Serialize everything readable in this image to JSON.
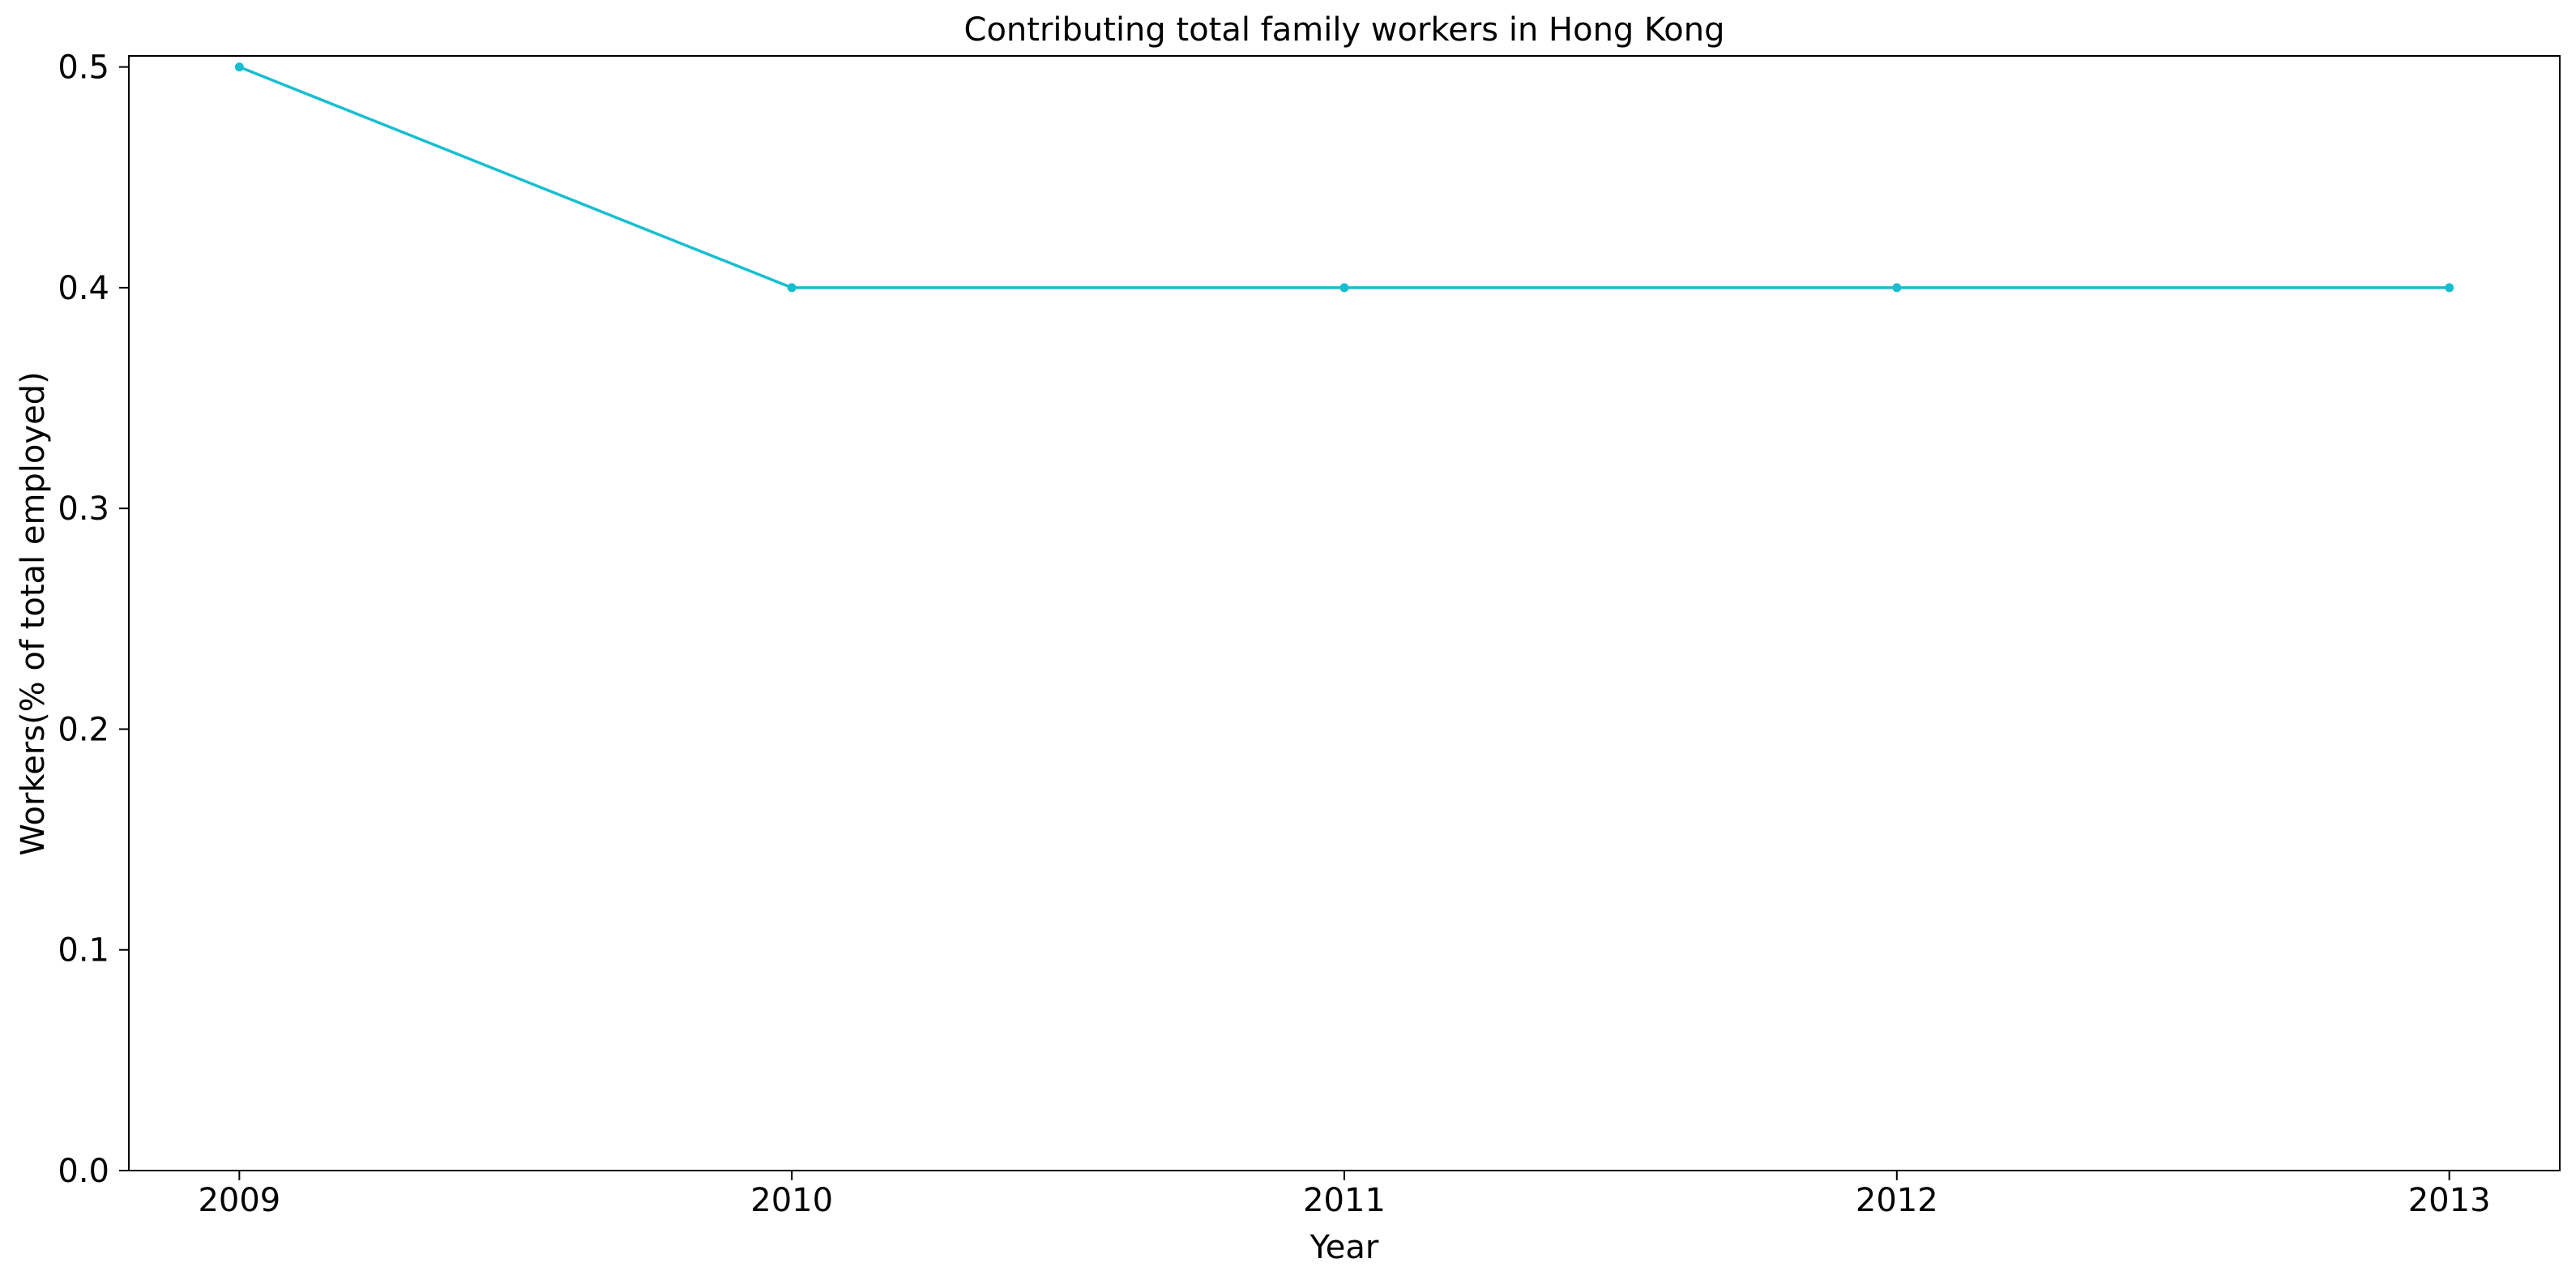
{
  "chart_data": {
    "type": "line",
    "title": "Contributing total family workers in Hong Kong",
    "xlabel": "Year",
    "ylabel": "Workers(% of total employed)",
    "x": [
      2009,
      2010,
      2011,
      2012,
      2013
    ],
    "series": [
      {
        "values": [
          0.5,
          0.4,
          0.4,
          0.4,
          0.4
        ],
        "color": "#17becf"
      }
    ],
    "xticks": [
      "2009",
      "2010",
      "2011",
      "2012",
      "2013"
    ],
    "yticks": [
      "0.0",
      "0.1",
      "0.2",
      "0.3",
      "0.4",
      "0.5"
    ],
    "ylim": [
      0,
      0.505
    ],
    "xlim": [
      2008.8,
      2013.2
    ],
    "grid": false,
    "legend": "none"
  }
}
